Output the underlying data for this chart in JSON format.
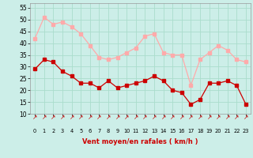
{
  "hours": [
    0,
    1,
    2,
    3,
    4,
    5,
    6,
    7,
    8,
    9,
    10,
    11,
    12,
    13,
    14,
    15,
    16,
    17,
    18,
    19,
    20,
    21,
    22,
    23
  ],
  "wind_avg": [
    29,
    33,
    32,
    28,
    26,
    23,
    23,
    21,
    24,
    21,
    22,
    23,
    24,
    26,
    24,
    20,
    19,
    14,
    16,
    23,
    23,
    24,
    22,
    14
  ],
  "wind_gust": [
    42,
    51,
    48,
    49,
    47,
    44,
    39,
    34,
    33,
    34,
    36,
    38,
    43,
    44,
    36,
    35,
    35,
    22,
    33,
    36,
    39,
    37,
    33,
    32
  ],
  "avg_color": "#cc0000",
  "gust_color": "#ffaaaa",
  "bg_color": "#cceee8",
  "grid_color": "#aaddcc",
  "xlabel": "Vent moyen/en rafales ( km/h )",
  "xlabel_color": "#cc0000",
  "ylim": [
    10,
    57
  ],
  "yticks": [
    10,
    15,
    20,
    25,
    30,
    35,
    40,
    45,
    50,
    55
  ],
  "marker_size": 2.5,
  "arrow_symbol": "↗"
}
